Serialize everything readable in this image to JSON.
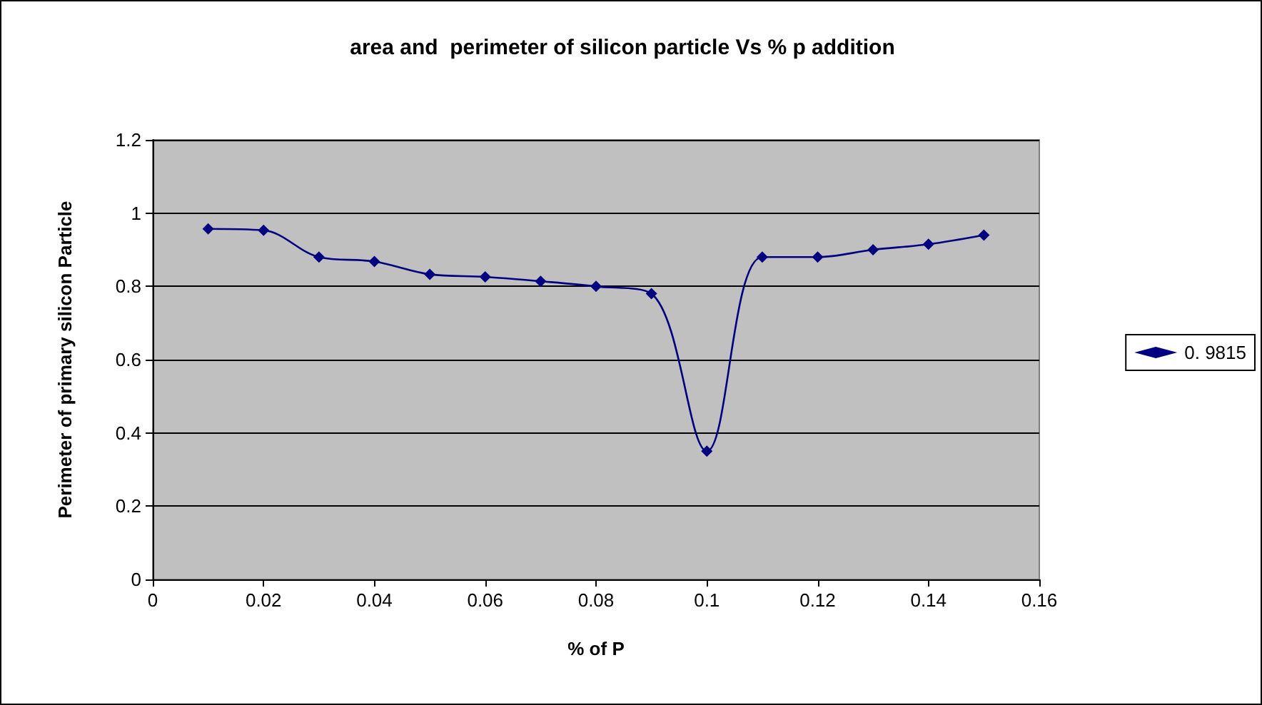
{
  "chart_data": {
    "type": "line",
    "title": "area and  perimeter of silicon particle Vs % p addition",
    "xlabel": "% of P",
    "ylabel": "Perimeter of primary silicon Particle",
    "x": [
      0.01,
      0.02,
      0.03,
      0.04,
      0.05,
      0.06,
      0.07,
      0.08,
      0.09,
      0.1,
      0.11,
      0.12,
      0.13,
      0.14,
      0.15
    ],
    "series": [
      {
        "name": "0. 9815",
        "color": "#000080",
        "values": [
          0.957,
          0.953,
          0.88,
          0.868,
          0.833,
          0.826,
          0.814,
          0.8,
          0.78,
          0.35,
          0.88,
          0.88,
          0.9,
          0.915,
          0.94
        ]
      }
    ],
    "xlim": [
      0,
      0.16
    ],
    "xticks": [
      0,
      0.02,
      0.04,
      0.06,
      0.08,
      0.1,
      0.12,
      0.14,
      0.16
    ],
    "ylim": [
      0,
      1.2
    ],
    "yticks": [
      0,
      0.2,
      0.4,
      0.6,
      0.8,
      1,
      1.2
    ],
    "grid": "y",
    "legend": "right",
    "marker": "diamond",
    "line_style": "solid"
  }
}
